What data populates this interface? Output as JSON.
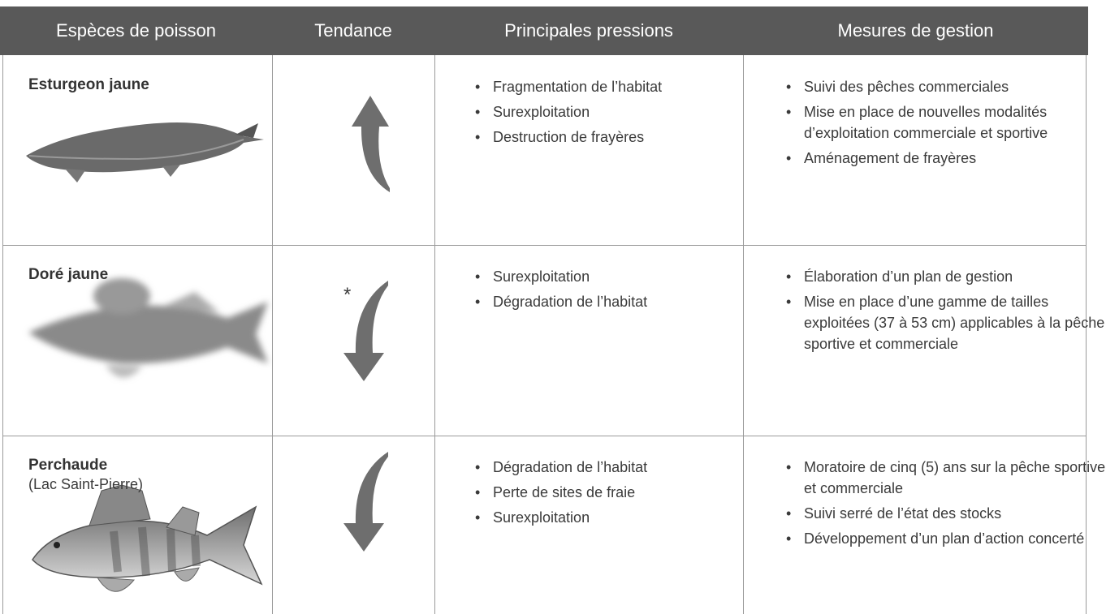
{
  "table": {
    "headers": [
      "Espèces de poisson",
      "Tendance",
      "Principales pressions",
      "Mesures de gestion"
    ],
    "rows": [
      {
        "species": "Esturgeon jaune",
        "pressures": [
          "Fragmentation de l’habitat",
          "Surexploitation",
          "Destruction de frayères"
        ],
        "measures": [
          "Suivi des pêches commerciales",
          "Mise en place de nouvelles modalités d’exploitation commerciale et sportive",
          "Aménagement de frayères"
        ]
      },
      {
        "species": "Doré jaune",
        "trend_note": "*",
        "pressures": [
          "Surexploitation",
          "Dégradation de l’habitat"
        ],
        "measures": [
          "Élaboration d’un plan de gestion",
          "Mise en place d’une gamme de tailles exploitées (37 à 53 cm) applicables à la pêche sportive et commerciale"
        ]
      },
      {
        "species": "Perchaude",
        "location": "(Lac Saint-Pierre)",
        "pressures": [
          "Dégradation de l’habitat",
          "Perte de sites de fraie",
          "Surexploitation"
        ],
        "measures": [
          "Moratoire de cinq (5) ans sur la pêche sportive et commerciale",
          "Suivi serré de l’état des stocks",
          "Développement d’un plan d’action concerté"
        ]
      }
    ]
  }
}
